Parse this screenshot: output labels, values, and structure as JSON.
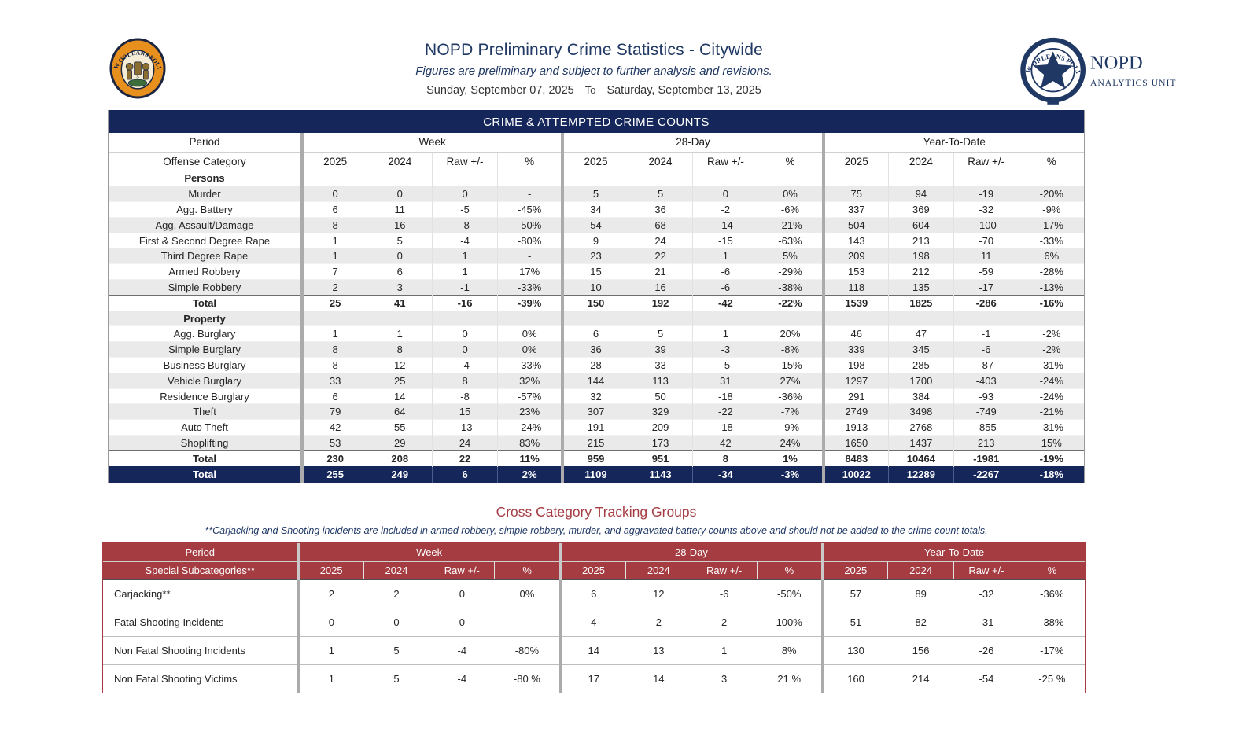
{
  "header": {
    "title": "NOPD Preliminary Crime Statistics - Citywide",
    "subtitle": "Figures are preliminary and subject to further analysis and revisions.",
    "date_from": "Sunday, September 07, 2025",
    "date_separator": "To",
    "date_to": "Saturday, September 13, 2025",
    "left_badge_ring_text": "NEW ORLEANS POLICE",
    "right_logo": {
      "ring_text": "NEW ORLEANS POLICE",
      "org": "NOPD",
      "unit": "ANALYTICS UNIT"
    }
  },
  "colors": {
    "navy": "#14265A",
    "navy_text": "#1F3864",
    "maroon": "#A43C42",
    "row_alt": "#EAEAEA",
    "group_separator": "#ABABAB",
    "badge_orange": "#E8901D"
  },
  "crime_table": {
    "title": "CRIME & ATTEMPTED CRIME COUNTS",
    "period_label": "Period",
    "category_label": "Offense Category",
    "groups": [
      "Week",
      "28-Day",
      "Year-To-Date"
    ],
    "subcolumns": [
      "2025",
      "2024",
      "Raw +/-",
      "%"
    ],
    "sections": [
      {
        "name": "Persons",
        "rows": [
          {
            "label": "Murder",
            "values": [
              "0",
              "0",
              "0",
              "-",
              "5",
              "5",
              "0",
              "0%",
              "75",
              "94",
              "-19",
              "-20%"
            ]
          },
          {
            "label": "Agg. Battery",
            "values": [
              "6",
              "11",
              "-5",
              "-45%",
              "34",
              "36",
              "-2",
              "-6%",
              "337",
              "369",
              "-32",
              "-9%"
            ]
          },
          {
            "label": "Agg. Assault/Damage",
            "values": [
              "8",
              "16",
              "-8",
              "-50%",
              "54",
              "68",
              "-14",
              "-21%",
              "504",
              "604",
              "-100",
              "-17%"
            ]
          },
          {
            "label": "First & Second Degree Rape",
            "values": [
              "1",
              "5",
              "-4",
              "-80%",
              "9",
              "24",
              "-15",
              "-63%",
              "143",
              "213",
              "-70",
              "-33%"
            ]
          },
          {
            "label": "Third Degree Rape",
            "values": [
              "1",
              "0",
              "1",
              "-",
              "23",
              "22",
              "1",
              "5%",
              "209",
              "198",
              "11",
              "6%"
            ]
          },
          {
            "label": "Armed Robbery",
            "values": [
              "7",
              "6",
              "1",
              "17%",
              "15",
              "21",
              "-6",
              "-29%",
              "153",
              "212",
              "-59",
              "-28%"
            ]
          },
          {
            "label": "Simple Robbery",
            "values": [
              "2",
              "3",
              "-1",
              "-33%",
              "10",
              "16",
              "-6",
              "-38%",
              "118",
              "135",
              "-17",
              "-13%"
            ]
          }
        ],
        "total": {
          "label": "Total",
          "values": [
            "25",
            "41",
            "-16",
            "-39%",
            "150",
            "192",
            "-42",
            "-22%",
            "1539",
            "1825",
            "-286",
            "-16%"
          ]
        }
      },
      {
        "name": "Property",
        "rows": [
          {
            "label": "Agg. Burglary",
            "values": [
              "1",
              "1",
              "0",
              "0%",
              "6",
              "5",
              "1",
              "20%",
              "46",
              "47",
              "-1",
              "-2%"
            ]
          },
          {
            "label": "Simple Burglary",
            "values": [
              "8",
              "8",
              "0",
              "0%",
              "36",
              "39",
              "-3",
              "-8%",
              "339",
              "345",
              "-6",
              "-2%"
            ]
          },
          {
            "label": "Business Burglary",
            "values": [
              "8",
              "12",
              "-4",
              "-33%",
              "28",
              "33",
              "-5",
              "-15%",
              "198",
              "285",
              "-87",
              "-31%"
            ]
          },
          {
            "label": "Vehicle Burglary",
            "values": [
              "33",
              "25",
              "8",
              "32%",
              "144",
              "113",
              "31",
              "27%",
              "1297",
              "1700",
              "-403",
              "-24%"
            ]
          },
          {
            "label": "Residence Burglary",
            "values": [
              "6",
              "14",
              "-8",
              "-57%",
              "32",
              "50",
              "-18",
              "-36%",
              "291",
              "384",
              "-93",
              "-24%"
            ]
          },
          {
            "label": "Theft",
            "values": [
              "79",
              "64",
              "15",
              "23%",
              "307",
              "329",
              "-22",
              "-7%",
              "2749",
              "3498",
              "-749",
              "-21%"
            ]
          },
          {
            "label": "Auto Theft",
            "values": [
              "42",
              "55",
              "-13",
              "-24%",
              "191",
              "209",
              "-18",
              "-9%",
              "1913",
              "2768",
              "-855",
              "-31%"
            ]
          },
          {
            "label": "Shoplifting",
            "values": [
              "53",
              "29",
              "24",
              "83%",
              "215",
              "173",
              "42",
              "24%",
              "1650",
              "1437",
              "213",
              "15%"
            ]
          }
        ],
        "total": {
          "label": "Total",
          "values": [
            "230",
            "208",
            "22",
            "11%",
            "959",
            "951",
            "8",
            "1%",
            "8483",
            "10464",
            "-1981",
            "-19%"
          ]
        }
      }
    ],
    "grand_total": {
      "label": "Total",
      "values": [
        "255",
        "249",
        "6",
        "2%",
        "1109",
        "1143",
        "-34",
        "-3%",
        "10022",
        "12289",
        "-2267",
        "-18%"
      ]
    }
  },
  "tracking_table": {
    "title": "Cross Category Tracking Groups",
    "note": "**Carjacking and Shooting incidents are included in armed robbery, simple robbery, murder, and aggravated battery counts above and should not be added to the crime count totals.",
    "period_label": "Period",
    "category_label": "Special Subcategories**",
    "groups": [
      "Week",
      "28-Day",
      "Year-To-Date"
    ],
    "subcolumns": [
      "2025",
      "2024",
      "Raw +/-",
      "%"
    ],
    "rows": [
      {
        "label": "Carjacking**",
        "values": [
          "2",
          "2",
          "0",
          "0%",
          "6",
          "12",
          "-6",
          "-50%",
          "57",
          "89",
          "-32",
          "-36%"
        ]
      },
      {
        "label": "Fatal Shooting Incidents",
        "values": [
          "0",
          "0",
          "0",
          "-",
          "4",
          "2",
          "2",
          "100%",
          "51",
          "82",
          "-31",
          "-38%"
        ]
      },
      {
        "label": "Non Fatal Shooting Incidents",
        "values": [
          "1",
          "5",
          "-4",
          "-80%",
          "14",
          "13",
          "1",
          "8%",
          "130",
          "156",
          "-26",
          "-17%"
        ]
      },
      {
        "label": "Non Fatal Shooting Victims",
        "values": [
          "1",
          "5",
          "-4",
          "-80 %",
          "17",
          "14",
          "3",
          "21 %",
          "160",
          "214",
          "-54",
          "-25 %"
        ]
      }
    ]
  }
}
